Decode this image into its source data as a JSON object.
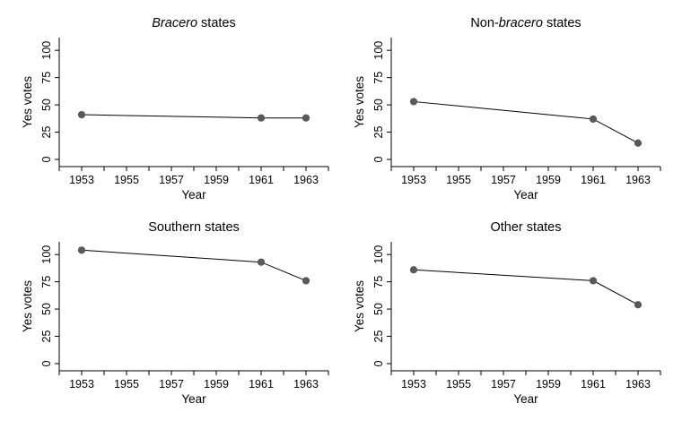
{
  "chart_data": [
    {
      "type": "line",
      "title_parts": [
        {
          "text": "Bracero",
          "italic": true
        },
        {
          "text": " states",
          "italic": false
        }
      ],
      "xlabel": "Year",
      "ylabel": "Yes votes",
      "xlim": [
        1952,
        1964
      ],
      "ylim": [
        0,
        110
      ],
      "xticks": [
        1953,
        1955,
        1957,
        1959,
        1961,
        1963
      ],
      "yticks": [
        0,
        25,
        50,
        75,
        100
      ],
      "x": [
        1953,
        1961,
        1963
      ],
      "series": [
        {
          "values": [
            41,
            38,
            38
          ]
        }
      ]
    },
    {
      "type": "line",
      "title_parts": [
        {
          "text": "Non-",
          "italic": false
        },
        {
          "text": "bracero",
          "italic": true
        },
        {
          "text": " states",
          "italic": false
        }
      ],
      "xlabel": "Year",
      "ylabel": "Yes votes",
      "xlim": [
        1952,
        1964
      ],
      "ylim": [
        0,
        110
      ],
      "xticks": [
        1953,
        1955,
        1957,
        1959,
        1961,
        1963
      ],
      "yticks": [
        0,
        25,
        50,
        75,
        100
      ],
      "x": [
        1953,
        1961,
        1963
      ],
      "series": [
        {
          "values": [
            53,
            37,
            15
          ]
        }
      ]
    },
    {
      "type": "line",
      "title_parts": [
        {
          "text": "Southern states",
          "italic": false
        }
      ],
      "xlabel": "Year",
      "ylabel": "Yes votes",
      "xlim": [
        1952,
        1964
      ],
      "ylim": [
        0,
        110
      ],
      "xticks": [
        1953,
        1955,
        1957,
        1959,
        1961,
        1963
      ],
      "yticks": [
        0,
        25,
        50,
        75,
        100
      ],
      "x": [
        1953,
        1961,
        1963
      ],
      "series": [
        {
          "values": [
            104,
            93,
            76
          ]
        }
      ]
    },
    {
      "type": "line",
      "title_parts": [
        {
          "text": "Other states",
          "italic": false
        }
      ],
      "xlabel": "Year",
      "ylabel": "Yes votes",
      "xlim": [
        1952,
        1964
      ],
      "ylim": [
        0,
        110
      ],
      "xticks": [
        1953,
        1955,
        1957,
        1959,
        1961,
        1963
      ],
      "yticks": [
        0,
        25,
        50,
        75,
        100
      ],
      "x": [
        1953,
        1961,
        1963
      ],
      "series": [
        {
          "values": [
            86,
            76,
            54
          ]
        }
      ]
    }
  ]
}
